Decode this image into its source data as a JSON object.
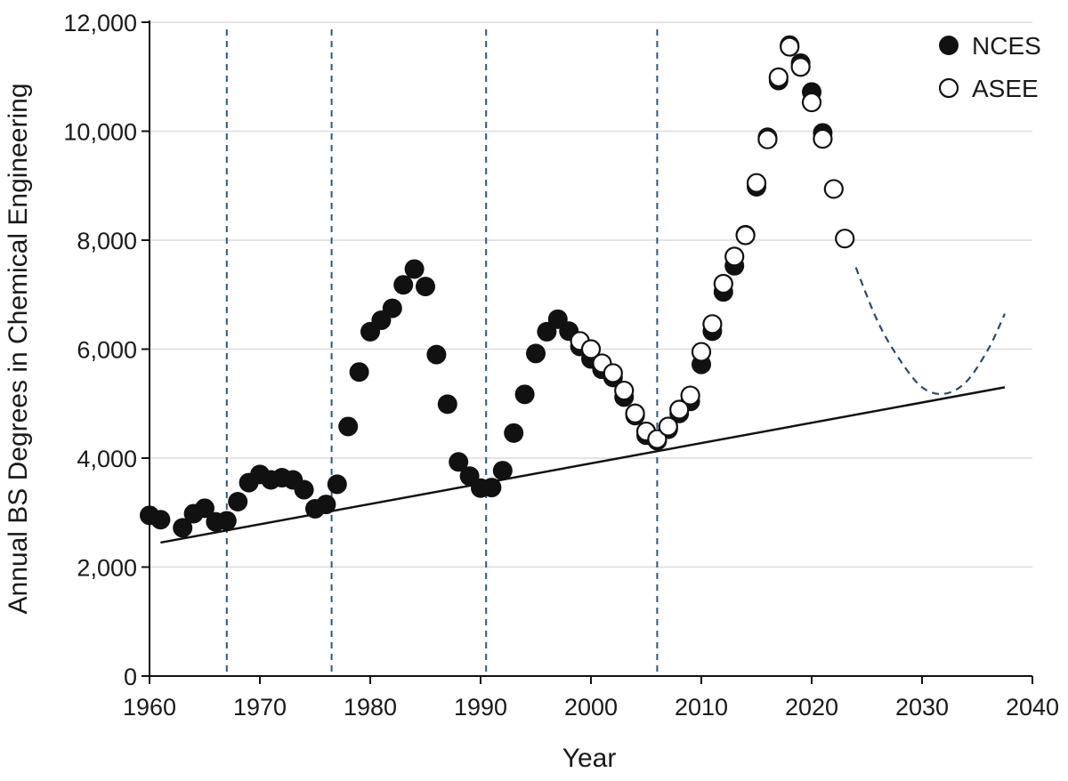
{
  "chart_data": {
    "type": "scatter",
    "xlabel": "Year",
    "ylabel": "Annual BS Degrees in Chemical Engineering",
    "xlim": [
      1960,
      2040
    ],
    "ylim": [
      0,
      12000
    ],
    "xticks": [
      "1960",
      "1970",
      "1980",
      "1990",
      "2000",
      "2010",
      "2020",
      "2030",
      "2040"
    ],
    "yticks": [
      "0",
      "2,000",
      "4,000",
      "6,000",
      "8,000",
      "10,000",
      "12,000"
    ],
    "x_tick_values": [
      1960,
      1970,
      1980,
      1990,
      2000,
      2010,
      2020,
      2030,
      2040
    ],
    "y_tick_values": [
      0,
      2000,
      4000,
      6000,
      8000,
      10000,
      12000
    ],
    "grid": "horizontal",
    "legend_position": "top-right",
    "legend": [
      {
        "name": "NCES",
        "marker": "filled-circle"
      },
      {
        "name": "ASEE",
        "marker": "open-circle"
      }
    ],
    "series": [
      {
        "name": "NCES",
        "marker": "filled",
        "color": "#111111",
        "points": [
          [
            1960,
            2950
          ],
          [
            1961,
            2870
          ],
          [
            1963,
            2720
          ],
          [
            1964,
            2980
          ],
          [
            1965,
            3080
          ],
          [
            1966,
            2830
          ],
          [
            1967,
            2850
          ],
          [
            1968,
            3200
          ],
          [
            1969,
            3550
          ],
          [
            1970,
            3700
          ],
          [
            1971,
            3600
          ],
          [
            1972,
            3640
          ],
          [
            1973,
            3600
          ],
          [
            1974,
            3420
          ],
          [
            1975,
            3070
          ],
          [
            1976,
            3150
          ],
          [
            1977,
            3520
          ],
          [
            1978,
            4580
          ],
          [
            1979,
            5580
          ],
          [
            1980,
            6320
          ],
          [
            1981,
            6530
          ],
          [
            1982,
            6750
          ],
          [
            1983,
            7180
          ],
          [
            1984,
            7470
          ],
          [
            1985,
            7150
          ],
          [
            1986,
            5900
          ],
          [
            1987,
            4990
          ],
          [
            1988,
            3930
          ],
          [
            1989,
            3670
          ],
          [
            1990,
            3450
          ],
          [
            1991,
            3460
          ],
          [
            1992,
            3770
          ],
          [
            1993,
            4460
          ],
          [
            1994,
            5170
          ],
          [
            1995,
            5920
          ],
          [
            1996,
            6320
          ],
          [
            1997,
            6550
          ],
          [
            1998,
            6330
          ],
          [
            1999,
            6050
          ],
          [
            2000,
            5820
          ],
          [
            2001,
            5630
          ],
          [
            2002,
            5480
          ],
          [
            2003,
            5120
          ],
          [
            2004,
            4780
          ],
          [
            2005,
            4420
          ],
          [
            2006,
            4320
          ],
          [
            2007,
            4530
          ],
          [
            2008,
            4820
          ],
          [
            2009,
            5040
          ],
          [
            2010,
            5720
          ],
          [
            2011,
            6330
          ],
          [
            2012,
            7050
          ],
          [
            2013,
            7530
          ],
          [
            2014,
            8100
          ],
          [
            2015,
            8980
          ],
          [
            2016,
            9890
          ],
          [
            2017,
            10930
          ],
          [
            2018,
            11580
          ],
          [
            2019,
            11250
          ],
          [
            2020,
            10720
          ],
          [
            2021,
            9970
          ]
        ]
      },
      {
        "name": "ASEE",
        "marker": "open",
        "color": "#111111",
        "points": [
          [
            1999,
            6150
          ],
          [
            2000,
            6000
          ],
          [
            2001,
            5740
          ],
          [
            2002,
            5560
          ],
          [
            2003,
            5240
          ],
          [
            2004,
            4820
          ],
          [
            2005,
            4490
          ],
          [
            2006,
            4350
          ],
          [
            2007,
            4580
          ],
          [
            2008,
            4890
          ],
          [
            2009,
            5150
          ],
          [
            2010,
            5950
          ],
          [
            2011,
            6460
          ],
          [
            2012,
            7200
          ],
          [
            2013,
            7700
          ],
          [
            2014,
            8090
          ],
          [
            2015,
            9050
          ],
          [
            2016,
            9850
          ],
          [
            2017,
            10990
          ],
          [
            2018,
            11550
          ],
          [
            2019,
            11180
          ],
          [
            2020,
            10530
          ],
          [
            2021,
            9860
          ],
          [
            2022,
            8940
          ],
          [
            2023,
            8030
          ]
        ]
      }
    ],
    "trend_line": {
      "style": "solid",
      "color": "#111111",
      "from": [
        1961,
        2450
      ],
      "to": [
        2037.5,
        5300
      ]
    },
    "projection": {
      "style": "dashed",
      "color": "#2b4a66",
      "points": [
        [
          2024,
          7500
        ],
        [
          2026,
          6500
        ],
        [
          2028,
          5800
        ],
        [
          2030,
          5300
        ],
        [
          2032,
          5180
        ],
        [
          2034,
          5400
        ],
        [
          2036,
          6000
        ],
        [
          2037.5,
          6650
        ]
      ]
    },
    "vertical_markers": {
      "style": "dashed",
      "color": "#2b5a7d",
      "x": [
        1967,
        1976.5,
        1990.5,
        2006
      ]
    }
  }
}
